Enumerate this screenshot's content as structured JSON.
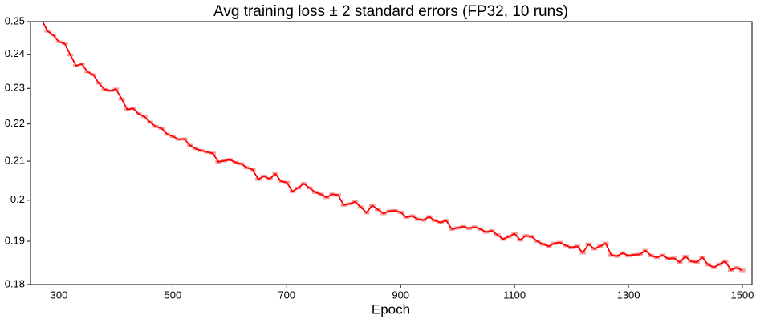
{
  "chart_data": {
    "type": "line",
    "title": "Avg training loss ± 2 standard errors (FP32, 10 runs)",
    "x_label": "Epoch",
    "x": [
      270,
      280,
      290,
      300,
      310,
      320,
      330,
      340,
      350,
      360,
      370,
      380,
      390,
      400,
      410,
      420,
      430,
      440,
      450,
      460,
      470,
      480,
      490,
      500,
      510,
      520,
      530,
      540,
      550,
      560,
      570,
      580,
      590,
      600,
      610,
      620,
      630,
      640,
      650,
      660,
      670,
      680,
      690,
      700,
      710,
      720,
      730,
      740,
      750,
      760,
      770,
      780,
      790,
      800,
      810,
      820,
      830,
      840,
      850,
      860,
      870,
      880,
      890,
      900,
      910,
      920,
      930,
      940,
      950,
      960,
      970,
      980,
      990,
      1000,
      1010,
      1020,
      1030,
      1040,
      1050,
      1060,
      1070,
      1080,
      1090,
      1100,
      1110,
      1120,
      1130,
      1140,
      1150,
      1160,
      1170,
      1180,
      1190,
      1200,
      1210,
      1220,
      1230,
      1240,
      1250,
      1260,
      1270,
      1280,
      1290,
      1300,
      1310,
      1320,
      1330,
      1340,
      1350,
      1360,
      1370,
      1380,
      1390,
      1400,
      1410,
      1420,
      1430,
      1440,
      1450,
      1460,
      1470,
      1480,
      1490,
      1500
    ],
    "series": [
      {
        "color": "#ff0000",
        "band_color": "#f4a0a0",
        "values": [
          0.2505,
          0.247,
          0.2458,
          0.2438,
          0.2432,
          0.2398,
          0.2366,
          0.2371,
          0.2348,
          0.234,
          0.2315,
          0.2297,
          0.2293,
          0.2298,
          0.227,
          0.224,
          0.2243,
          0.2228,
          0.222,
          0.2205,
          0.2193,
          0.2188,
          0.2172,
          0.2166,
          0.2158,
          0.2159,
          0.2142,
          0.2133,
          0.2128,
          0.2124,
          0.2121,
          0.2098,
          0.2101,
          0.2104,
          0.2097,
          0.2093,
          0.2083,
          0.2078,
          0.2053,
          0.2061,
          0.2054,
          0.2067,
          0.2048,
          0.2045,
          0.2022,
          0.2031,
          0.2042,
          0.2031,
          0.202,
          0.2015,
          0.2007,
          0.2015,
          0.2013,
          0.1988,
          0.1991,
          0.1996,
          0.1983,
          0.1969,
          0.1987,
          0.1977,
          0.1967,
          0.1973,
          0.1974,
          0.197,
          0.1958,
          0.1961,
          0.1953,
          0.1951,
          0.1959,
          0.195,
          0.1945,
          0.195,
          0.1929,
          0.1932,
          0.1935,
          0.1931,
          0.1934,
          0.1929,
          0.1922,
          0.1925,
          0.1915,
          0.1905,
          0.1911,
          0.1918,
          0.1903,
          0.1913,
          0.1911,
          0.19,
          0.1893,
          0.1888,
          0.1895,
          0.1897,
          0.189,
          0.1885,
          0.1888,
          0.1873,
          0.1893,
          0.1882,
          0.1888,
          0.1895,
          0.1867,
          0.1865,
          0.1872,
          0.1866,
          0.1868,
          0.1869,
          0.1878,
          0.1866,
          0.1862,
          0.1867,
          0.1859,
          0.186,
          0.1851,
          0.1864,
          0.1853,
          0.1851,
          0.1862,
          0.1845,
          0.1839,
          0.1846,
          0.1853,
          0.1833,
          0.1838,
          0.1832
        ],
        "errors": [
          0.0004,
          0.0004,
          0.0004,
          0.0004,
          0.0004,
          0.0004,
          0.0004,
          0.0004,
          0.0004,
          0.0004,
          0.0004,
          0.0004,
          0.0004,
          0.0004,
          0.0004,
          0.0004,
          0.0004,
          0.0004,
          0.0004,
          0.0004,
          0.0004,
          0.0004,
          0.0004,
          0.0004,
          0.0004,
          0.0004,
          0.0004,
          0.0004,
          0.0004,
          0.0004,
          0.0004,
          0.0004,
          0.0004,
          0.0004,
          0.0004,
          0.0004,
          0.0004,
          0.0004,
          0.0004,
          0.0004,
          0.0004,
          0.0004,
          0.0004,
          0.0004,
          0.0004,
          0.0004,
          0.0004,
          0.0004,
          0.0004,
          0.0004,
          0.0004,
          0.0004,
          0.0004,
          0.0004,
          0.0004,
          0.0004,
          0.0004,
          0.0004,
          0.0004,
          0.0004,
          0.0004,
          0.0004,
          0.0004,
          0.0004,
          0.0004,
          0.0004,
          0.0004,
          0.0004,
          0.0004,
          0.0004,
          0.0004,
          0.0004,
          0.0004,
          0.0004,
          0.0004,
          0.0004,
          0.0004,
          0.0004,
          0.0004,
          0.0004,
          0.0004,
          0.0004,
          0.0004,
          0.0004,
          0.0004,
          0.0004,
          0.0004,
          0.0004,
          0.0004,
          0.0004,
          0.0004,
          0.0004,
          0.0004,
          0.0004,
          0.0004,
          0.0004,
          0.0004,
          0.0004,
          0.0004,
          0.0004,
          0.0004,
          0.0004,
          0.0004,
          0.0004,
          0.0004,
          0.0004,
          0.0004,
          0.0004,
          0.0004,
          0.0004,
          0.0004,
          0.0004,
          0.0004,
          0.0004,
          0.0004,
          0.0004,
          0.0004,
          0.0004,
          0.0004,
          0.0004,
          0.0004,
          0.0004,
          0.0004,
          0.0004
        ]
      }
    ],
    "xlim": [
      250,
      1517
    ],
    "xticks": [
      300,
      500,
      700,
      900,
      1100,
      1300,
      1500
    ],
    "ylim": [
      0.18,
      0.25
    ],
    "yticks": [
      0.18,
      0.19,
      0.2,
      0.21,
      0.22,
      0.23,
      0.24,
      0.25
    ],
    "y_scale": "log",
    "grid": false
  }
}
